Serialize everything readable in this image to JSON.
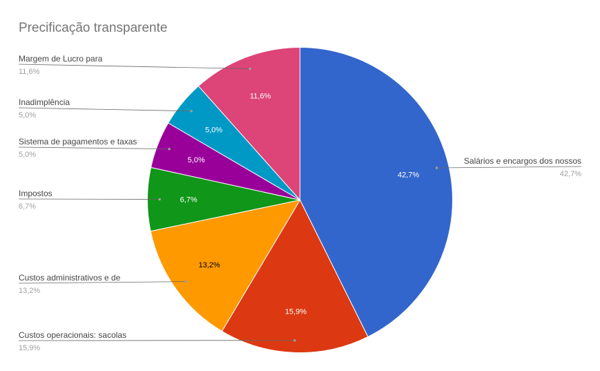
{
  "chart_data": {
    "type": "pie",
    "title": "Precificação transparente",
    "start_angle_deg": 0,
    "direction": "clockwise",
    "legend": "callout-labels",
    "slices": [
      {
        "label": "Salários e encargos dos nossos",
        "value": 42.7,
        "display": "42,7%",
        "color": "#3366cc",
        "text_color": "#ffffff"
      },
      {
        "label": "Custos operacionais: sacolas",
        "value": 15.9,
        "display": "15,9%",
        "color": "#dc3912",
        "text_color": "#ffffff"
      },
      {
        "label": "Custos administrativos e de",
        "value": 13.2,
        "display": "13,2%",
        "color": "#ff9900",
        "text_color": "#000000"
      },
      {
        "label": "Impostos",
        "value": 6.7,
        "display": "6,7%",
        "color": "#109618",
        "text_color": "#ffffff"
      },
      {
        "label": "Sistema de pagamentos e taxas",
        "value": 5.0,
        "display": "5,0%",
        "color": "#990099",
        "text_color": "#ffffff"
      },
      {
        "label": "Inadimplência",
        "value": 5.0,
        "display": "5,0%",
        "color": "#0099c6",
        "text_color": "#ffffff"
      },
      {
        "label": "Margem de Lucro para",
        "value": 11.6,
        "display": "11,6%",
        "color": "#dd4477",
        "text_color": "#ffffff"
      }
    ]
  }
}
